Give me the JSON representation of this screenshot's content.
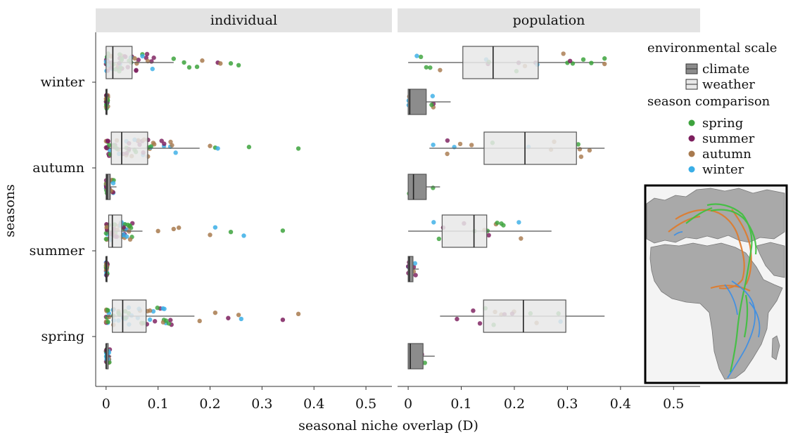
{
  "chart_data": {
    "type": "box-strip",
    "facets": [
      "individual",
      "population"
    ],
    "y_categories": [
      "winter",
      "autumn",
      "summer",
      "spring"
    ],
    "ylabel": "seasons",
    "xlabel": "seasonal niche overlap (D)",
    "xlim": [
      -0.02,
      0.55
    ],
    "x_ticks": [
      0,
      0.1,
      0.2,
      0.3,
      0.4,
      0.5
    ],
    "x_tick_labels": [
      "0",
      "0.1",
      "0.2",
      "0.3",
      "0.4",
      "0.5"
    ],
    "grid": false,
    "legend": {
      "position": "right",
      "scale_title": "environmental scale",
      "scales": [
        {
          "name": "climate",
          "color": "#8c8c8c"
        },
        {
          "name": "weather",
          "color": "#e8e8e8"
        }
      ],
      "comparison_title": "season comparison",
      "comparisons": [
        {
          "name": "spring",
          "color": "#3da33d"
        },
        {
          "name": "summer",
          "color": "#7d1f5e"
        },
        {
          "name": "autumn",
          "color": "#a87a4e"
        },
        {
          "name": "winter",
          "color": "#3aaee6"
        }
      ]
    },
    "boxes": [
      {
        "facet": "individual",
        "season": "winter",
        "scale": "weather",
        "min": 0,
        "q1": 0.0,
        "median": 0.013,
        "q3": 0.05,
        "max": 0.13
      },
      {
        "facet": "individual",
        "season": "winter",
        "scale": "climate",
        "min": 0,
        "q1": 0.0,
        "median": 0.0,
        "q3": 0.002,
        "max": 0.005
      },
      {
        "facet": "individual",
        "season": "autumn",
        "scale": "weather",
        "min": 0,
        "q1": 0.01,
        "median": 0.03,
        "q3": 0.08,
        "max": 0.18
      },
      {
        "facet": "individual",
        "season": "autumn",
        "scale": "climate",
        "min": 0,
        "q1": 0.0,
        "median": 0.002,
        "q3": 0.008,
        "max": 0.02
      },
      {
        "facet": "individual",
        "season": "summer",
        "scale": "weather",
        "min": 0,
        "q1": 0.005,
        "median": 0.012,
        "q3": 0.03,
        "max": 0.07
      },
      {
        "facet": "individual",
        "season": "summer",
        "scale": "climate",
        "min": 0,
        "q1": 0.0,
        "median": 0.0,
        "q3": 0.001,
        "max": 0.004
      },
      {
        "facet": "individual",
        "season": "spring",
        "scale": "weather",
        "min": 0,
        "q1": 0.012,
        "median": 0.032,
        "q3": 0.077,
        "max": 0.17
      },
      {
        "facet": "individual",
        "season": "spring",
        "scale": "climate",
        "min": 0,
        "q1": 0.0,
        "median": 0.0,
        "q3": 0.004,
        "max": 0.01
      },
      {
        "facet": "population",
        "season": "winter",
        "scale": "weather",
        "min": 0,
        "q1": 0.103,
        "median": 0.16,
        "q3": 0.245,
        "max": 0.37
      },
      {
        "facet": "population",
        "season": "winter",
        "scale": "climate",
        "min": 0,
        "q1": 0.0,
        "median": 0.003,
        "q3": 0.034,
        "max": 0.08
      },
      {
        "facet": "population",
        "season": "autumn",
        "scale": "weather",
        "min": 0.04,
        "q1": 0.143,
        "median": 0.22,
        "q3": 0.317,
        "max": 0.37
      },
      {
        "facet": "population",
        "season": "autumn",
        "scale": "climate",
        "min": 0,
        "q1": 0.0,
        "median": 0.01,
        "q3": 0.034,
        "max": 0.06
      },
      {
        "facet": "population",
        "season": "summer",
        "scale": "weather",
        "min": 0,
        "q1": 0.064,
        "median": 0.124,
        "q3": 0.148,
        "max": 0.27
      },
      {
        "facet": "population",
        "season": "summer",
        "scale": "climate",
        "min": 0,
        "q1": 0.0,
        "median": 0.002,
        "q3": 0.009,
        "max": 0.02
      },
      {
        "facet": "population",
        "season": "spring",
        "scale": "weather",
        "min": 0.06,
        "q1": 0.142,
        "median": 0.217,
        "q3": 0.297,
        "max": 0.37
      },
      {
        "facet": "population",
        "season": "spring",
        "scale": "climate",
        "min": 0,
        "q1": 0.0,
        "median": 0.004,
        "q3": 0.028,
        "max": 0.05
      }
    ],
    "outlier_points": [
      {
        "facet": "individual",
        "season": "winter",
        "scale": "weather",
        "x": [
          0.16,
          0.175,
          0.215,
          0.24,
          0.255,
          0.185,
          0.22,
          0.15,
          0.13
        ],
        "groups": [
          "spring",
          "spring",
          "summer",
          "spring",
          "spring",
          "autumn",
          "autumn",
          "spring",
          "spring"
        ]
      },
      {
        "facet": "individual",
        "season": "autumn",
        "scale": "weather",
        "x": [
          0.21,
          0.215,
          0.275,
          0.37,
          0.2
        ],
        "groups": [
          "spring",
          "winter",
          "spring",
          "spring",
          "autumn"
        ]
      },
      {
        "facet": "individual",
        "season": "summer",
        "scale": "weather",
        "x": [
          0.1,
          0.13,
          0.14,
          0.2,
          0.21,
          0.24,
          0.265,
          0.34
        ],
        "groups": [
          "autumn",
          "autumn",
          "autumn",
          "autumn",
          "winter",
          "spring",
          "winter",
          "spring"
        ]
      },
      {
        "facet": "individual",
        "season": "spring",
        "scale": "weather",
        "x": [
          0.18,
          0.21,
          0.235,
          0.26,
          0.34,
          0.37,
          0.255
        ],
        "groups": [
          "autumn",
          "autumn",
          "summer",
          "winter",
          "summer",
          "autumn",
          "autumn"
        ]
      },
      {
        "facet": "population",
        "season": "winter",
        "scale": "weather",
        "x": [
          0.3,
          0.31,
          0.33,
          0.345,
          0.37,
          0.37,
          0.305
        ],
        "groups": [
          "spring",
          "spring",
          "spring",
          "spring",
          "spring",
          "autumn",
          "summer"
        ]
      }
    ]
  }
}
